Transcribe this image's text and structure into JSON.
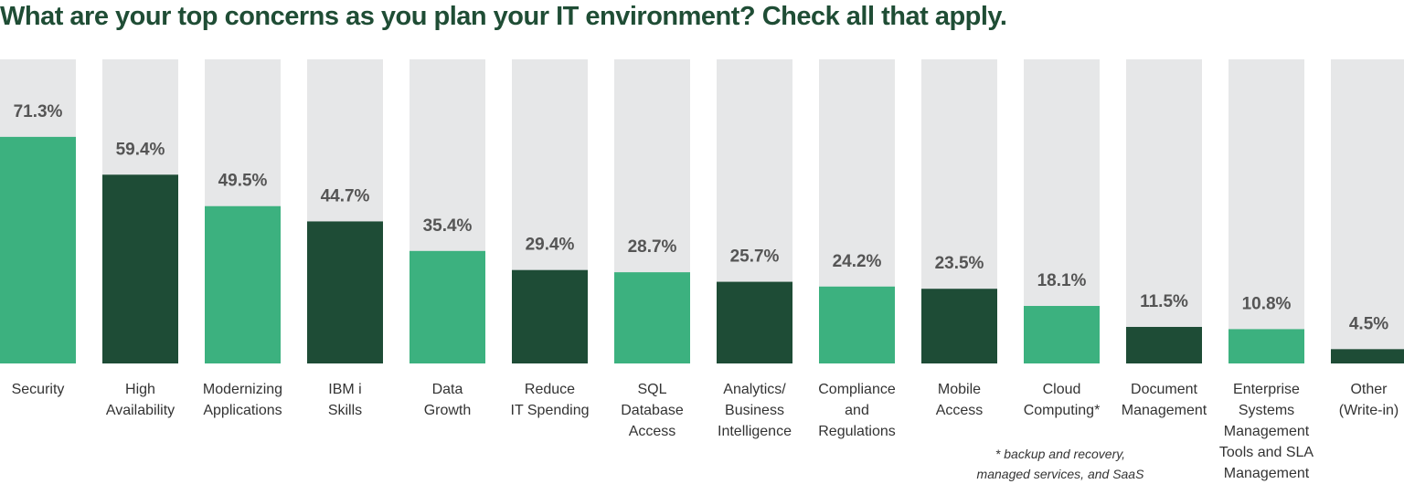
{
  "title": "What are your top concerns as you plan your IT environment?  Check all that apply.",
  "footnote": [
    "* backup and recovery,",
    "managed services, and SaaS"
  ],
  "colors": {
    "light_green": "#3cb17f",
    "dark_green": "#1e4c36",
    "track": "#e6e7e8",
    "title": "#1f4d35",
    "value_label": "#555555",
    "category_label": "#333333"
  },
  "chart_data": {
    "type": "bar",
    "title": "What are your top concerns as you plan your IT environment?  Check all that apply.",
    "xlabel": "",
    "ylabel": "",
    "ylim": [
      0,
      100
    ],
    "grid": false,
    "categories": [
      [
        "Security"
      ],
      [
        "High",
        "Availability"
      ],
      [
        "Modernizing",
        "Applications"
      ],
      [
        "IBM i",
        "Skills"
      ],
      [
        "Data",
        "Growth"
      ],
      [
        "Reduce",
        "IT Spending"
      ],
      [
        "SQL",
        "Database",
        "Access"
      ],
      [
        "Analytics/",
        "Business",
        "Intelligence"
      ],
      [
        "Compliance",
        "and",
        "Regulations"
      ],
      [
        "Mobile",
        "Access"
      ],
      [
        "Cloud",
        "Computing*"
      ],
      [
        "Document",
        "Management"
      ],
      [
        "Enterprise",
        "Systems",
        "Management",
        "Tools and SLA",
        "Management"
      ],
      [
        "Other",
        "(Write-in)"
      ]
    ],
    "values": [
      71.3,
      59.4,
      49.5,
      44.7,
      35.4,
      29.4,
      28.7,
      25.7,
      24.2,
      23.5,
      18.1,
      11.5,
      10.8,
      4.5
    ],
    "value_labels": [
      "71.3%",
      "59.4%",
      "49.5%",
      "44.7%",
      "35.4%",
      "29.4%",
      "28.7%",
      "25.7%",
      "24.2%",
      "23.5%",
      "18.1%",
      "11.5%",
      "10.8%",
      "4.5%"
    ],
    "bar_colors": [
      "light",
      "dark",
      "light",
      "dark",
      "light",
      "dark",
      "light",
      "dark",
      "light",
      "dark",
      "light",
      "dark",
      "light",
      "dark"
    ]
  }
}
